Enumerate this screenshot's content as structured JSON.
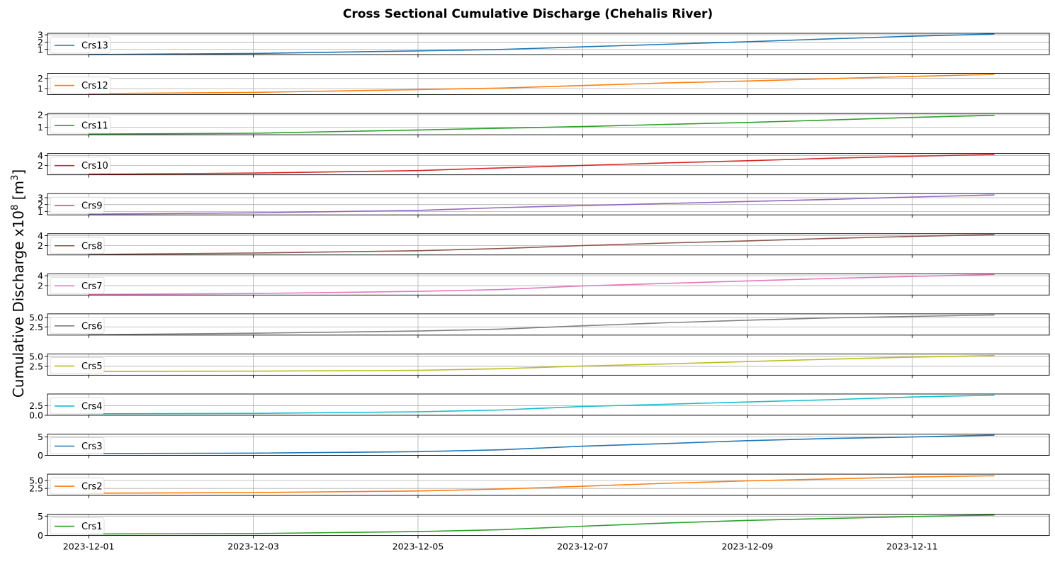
{
  "chart_data": {
    "type": "line",
    "title": "Cross Sectional Cumulative Discharge (Chehalis River)",
    "ylabel": "Cumulative Discharge x10",
    "ylabel_exponent": "8",
    "ylabel_unit_prefix": " [m",
    "ylabel_unit_exponent": "3",
    "ylabel_unit_suffix": "]",
    "x_range": [
      "2023-11-30T12:00",
      "2023-12-12T16:00"
    ],
    "x_tick_labels": [
      "2023-12-01",
      "2023-12-03",
      "2023-12-05",
      "2023-12-07",
      "2023-12-09",
      "2023-12-11"
    ],
    "grid": true,
    "legend_position": "left",
    "subplots": [
      {
        "name": "Crs13",
        "color": "#1f77b4",
        "ylim": [
          0.3,
          3.2
        ],
        "yticks": [
          1,
          2,
          3
        ],
        "ytick_labels": [
          "1",
          "2",
          "3"
        ],
        "x": [
          "2023-12-01T00:00",
          "2023-12-03T00:00",
          "2023-12-05T00:00",
          "2023-12-06T00:00",
          "2023-12-07T00:00",
          "2023-12-08T00:00",
          "2023-12-09T00:00",
          "2023-12-10T00:00",
          "2023-12-11T00:00",
          "2023-12-12T00:00"
        ],
        "values": [
          0.3,
          0.45,
          0.8,
          1.0,
          1.35,
          1.7,
          2.05,
          2.45,
          2.8,
          3.1
        ]
      },
      {
        "name": "Crs12",
        "color": "#ff7f0e",
        "ylim": [
          0.4,
          2.5
        ],
        "yticks": [
          1,
          2
        ],
        "ytick_labels": [
          "1",
          "2"
        ],
        "x": [
          "2023-12-01T00:00",
          "2023-12-03T00:00",
          "2023-12-05T00:00",
          "2023-12-06T00:00",
          "2023-12-07T00:00",
          "2023-12-08T00:00",
          "2023-12-09T00:00",
          "2023-12-10T00:00",
          "2023-12-11T00:00",
          "2023-12-12T00:00"
        ],
        "values": [
          0.5,
          0.62,
          0.9,
          1.05,
          1.3,
          1.55,
          1.75,
          1.98,
          2.2,
          2.4
        ]
      },
      {
        "name": "Crs11",
        "color": "#2ca02c",
        "ylim": [
          0.4,
          2.1
        ],
        "yticks": [
          1,
          2
        ],
        "ytick_labels": [
          "1",
          "2"
        ],
        "x": [
          "2023-12-01T00:00",
          "2023-12-03T00:00",
          "2023-12-05T00:00",
          "2023-12-06T00:00",
          "2023-12-07T00:00",
          "2023-12-08T00:00",
          "2023-12-09T00:00",
          "2023-12-10T00:00",
          "2023-12-11T00:00",
          "2023-12-12T00:00"
        ],
        "values": [
          0.45,
          0.52,
          0.78,
          0.92,
          1.05,
          1.22,
          1.38,
          1.58,
          1.78,
          1.95
        ]
      },
      {
        "name": "Crs10",
        "color": "#d62728",
        "ylim": [
          0.1,
          4.4
        ],
        "yticks": [
          2,
          4
        ],
        "ytick_labels": [
          "2",
          "4"
        ],
        "x": [
          "2023-12-01T00:00",
          "2023-12-03T00:00",
          "2023-12-05T00:00",
          "2023-12-06T00:00",
          "2023-12-07T00:00",
          "2023-12-08T00:00",
          "2023-12-09T00:00",
          "2023-12-10T00:00",
          "2023-12-11T00:00",
          "2023-12-12T00:00"
        ],
        "values": [
          0.2,
          0.45,
          0.95,
          1.5,
          2.0,
          2.5,
          2.95,
          3.45,
          3.85,
          4.2
        ]
      },
      {
        "name": "Crs9",
        "color": "#9467bd",
        "ylim": [
          0.5,
          3.6
        ],
        "yticks": [
          1,
          2,
          3
        ],
        "ytick_labels": [
          "1",
          "2",
          "3"
        ],
        "x": [
          "2023-12-01T00:00",
          "2023-12-03T00:00",
          "2023-12-05T00:00",
          "2023-12-06T00:00",
          "2023-12-07T00:00",
          "2023-12-08T00:00",
          "2023-12-09T00:00",
          "2023-12-10T00:00",
          "2023-12-11T00:00",
          "2023-12-12T00:00"
        ],
        "values": [
          0.6,
          0.8,
          1.15,
          1.55,
          1.85,
          2.15,
          2.45,
          2.75,
          3.1,
          3.4
        ]
      },
      {
        "name": "Crs8",
        "color": "#8c564b",
        "ylim": [
          0.1,
          4.4
        ],
        "yticks": [
          2,
          4
        ],
        "ytick_labels": [
          "2",
          "4"
        ],
        "x": [
          "2023-12-01T00:00",
          "2023-12-03T00:00",
          "2023-12-05T00:00",
          "2023-12-06T00:00",
          "2023-12-07T00:00",
          "2023-12-08T00:00",
          "2023-12-09T00:00",
          "2023-12-10T00:00",
          "2023-12-11T00:00",
          "2023-12-12T00:00"
        ],
        "values": [
          0.2,
          0.5,
          0.95,
          1.4,
          2.0,
          2.5,
          2.95,
          3.45,
          3.85,
          4.2
        ]
      },
      {
        "name": "Crs7",
        "color": "#e377c2",
        "ylim": [
          0.1,
          4.4
        ],
        "yticks": [
          2,
          4
        ],
        "ytick_labels": [
          "2",
          "4"
        ],
        "x": [
          "2023-12-01T00:00",
          "2023-12-03T00:00",
          "2023-12-05T00:00",
          "2023-12-06T00:00",
          "2023-12-07T00:00",
          "2023-12-08T00:00",
          "2023-12-09T00:00",
          "2023-12-10T00:00",
          "2023-12-11T00:00",
          "2023-12-12T00:00"
        ],
        "values": [
          0.2,
          0.4,
          0.85,
          1.2,
          1.95,
          2.45,
          2.95,
          3.45,
          3.85,
          4.25
        ]
      },
      {
        "name": "Crs6",
        "color": "#7f7f7f",
        "ylim": [
          0.3,
          6.0
        ],
        "yticks": [
          2.5,
          5.0
        ],
        "ytick_labels": [
          "2.5",
          "5.0"
        ],
        "x": [
          "2023-12-01T00:00",
          "2023-12-03T00:00",
          "2023-12-05T00:00",
          "2023-12-06T00:00",
          "2023-12-07T00:00",
          "2023-12-08T00:00",
          "2023-12-09T00:00",
          "2023-12-10T00:00",
          "2023-12-11T00:00",
          "2023-12-12T00:00"
        ],
        "values": [
          0.4,
          0.8,
          1.4,
          1.9,
          2.8,
          3.6,
          4.3,
          4.9,
          5.3,
          5.7
        ]
      },
      {
        "name": "Crs5",
        "color": "#bcbd22",
        "ylim": [
          0.3,
          5.6
        ],
        "yticks": [
          2.5,
          5.0
        ],
        "ytick_labels": [
          "2.5",
          "5.0"
        ],
        "x": [
          "2023-12-01T00:00",
          "2023-12-03T00:00",
          "2023-12-05T00:00",
          "2023-12-06T00:00",
          "2023-12-07T00:00",
          "2023-12-08T00:00",
          "2023-12-09T00:00",
          "2023-12-10T00:00",
          "2023-12-11T00:00",
          "2023-12-12T00:00"
        ],
        "values": [
          1.2,
          1.3,
          1.5,
          1.9,
          2.6,
          3.1,
          3.7,
          4.3,
          4.8,
          5.2
        ]
      },
      {
        "name": "Crs4",
        "color": "#17becf",
        "ylim": [
          0.0,
          5.6
        ],
        "yticks": [
          0.0,
          2.5
        ],
        "ytick_labels": [
          "0.0",
          "2.5"
        ],
        "x": [
          "2023-12-01T00:00",
          "2023-12-03T00:00",
          "2023-12-05T00:00",
          "2023-12-06T00:00",
          "2023-12-07T00:00",
          "2023-12-08T00:00",
          "2023-12-09T00:00",
          "2023-12-10T00:00",
          "2023-12-11T00:00",
          "2023-12-12T00:00"
        ],
        "values": [
          0.4,
          0.5,
          0.9,
          1.4,
          2.3,
          2.9,
          3.5,
          4.1,
          4.8,
          5.3
        ]
      },
      {
        "name": "Crs3",
        "color": "#1f77b4",
        "ylim": [
          0.0,
          5.8
        ],
        "yticks": [
          0,
          5
        ],
        "ytick_labels": [
          "0",
          "5"
        ],
        "x": [
          "2023-12-01T00:00",
          "2023-12-03T00:00",
          "2023-12-05T00:00",
          "2023-12-06T00:00",
          "2023-12-07T00:00",
          "2023-12-08T00:00",
          "2023-12-09T00:00",
          "2023-12-10T00:00",
          "2023-12-11T00:00",
          "2023-12-12T00:00"
        ],
        "values": [
          0.5,
          0.6,
          1.0,
          1.5,
          2.5,
          3.2,
          4.0,
          4.6,
          5.0,
          5.5
        ]
      },
      {
        "name": "Crs2",
        "color": "#ff7f0e",
        "ylim": [
          0.3,
          7.0
        ],
        "yticks": [
          2.5,
          5.0
        ],
        "ytick_labels": [
          "2.5",
          "5.0"
        ],
        "x": [
          "2023-12-01T00:00",
          "2023-12-03T00:00",
          "2023-12-05T00:00",
          "2023-12-06T00:00",
          "2023-12-07T00:00",
          "2023-12-08T00:00",
          "2023-12-09T00:00",
          "2023-12-10T00:00",
          "2023-12-11T00:00",
          "2023-12-12T00:00"
        ],
        "values": [
          1.0,
          1.2,
          1.7,
          2.3,
          3.2,
          4.1,
          4.9,
          5.5,
          6.1,
          6.5
        ]
      },
      {
        "name": "Crs1",
        "color": "#2ca02c",
        "ylim": [
          0.0,
          5.5
        ],
        "yticks": [
          0,
          5
        ],
        "ytick_labels": [
          "0",
          "5"
        ],
        "x": [
          "2023-12-01T00:00",
          "2023-12-03T00:00",
          "2023-12-05T00:00",
          "2023-12-06T00:00",
          "2023-12-07T00:00",
          "2023-12-08T00:00",
          "2023-12-09T00:00",
          "2023-12-10T00:00",
          "2023-12-11T00:00",
          "2023-12-12T00:00"
        ],
        "values": [
          0.4,
          0.5,
          1.0,
          1.5,
          2.4,
          3.2,
          3.9,
          4.4,
          4.9,
          5.3
        ]
      }
    ]
  }
}
